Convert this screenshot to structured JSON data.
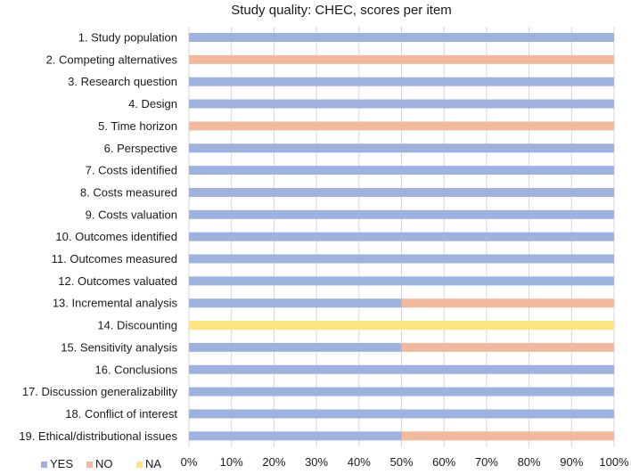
{
  "chart_data": {
    "type": "bar",
    "orientation": "horizontal",
    "stacked": true,
    "percent": true,
    "title": "Study quality: CHEC, scores per item",
    "xlabel": "",
    "ylabel": "",
    "xlim": [
      0,
      100
    ],
    "x_ticks": [
      "0%",
      "10%",
      "20%",
      "30%",
      "40%",
      "50%",
      "60%",
      "70%",
      "80%",
      "90%",
      "100%"
    ],
    "grid": "vertical",
    "legend_position": "bottom-left",
    "categories": [
      "1. Study population",
      "2. Competing alternatives",
      "3. Research question",
      "4. Design",
      "5. Time horizon",
      "6. Perspective",
      "7. Costs identified",
      "8. Costs measured",
      "9. Costs valuation",
      "10. Outcomes identified",
      "11. Outcomes measured",
      "12. Outcomes valuated",
      "13. Incremental analysis",
      "14. Discounting",
      "15. Sensitivity analysis",
      "16. Conclusions",
      "17. Discussion generalizability",
      "18. Conflict of interest",
      "19. Ethical/distributional issues"
    ],
    "series": [
      {
        "name": "YES",
        "color": "#9db2df",
        "values": [
          100,
          0,
          100,
          100,
          0,
          100,
          100,
          100,
          100,
          100,
          100,
          100,
          50,
          0,
          50,
          100,
          100,
          100,
          50
        ]
      },
      {
        "name": "NO",
        "color": "#f3b99d",
        "values": [
          0,
          100,
          0,
          0,
          100,
          0,
          0,
          0,
          0,
          0,
          0,
          0,
          50,
          0,
          50,
          0,
          0,
          0,
          50
        ]
      },
      {
        "name": "NA",
        "color": "#fde581",
        "values": [
          0,
          0,
          0,
          0,
          0,
          0,
          0,
          0,
          0,
          0,
          0,
          0,
          0,
          100,
          0,
          0,
          0,
          0,
          0
        ]
      }
    ]
  },
  "colors": {
    "grid": "#d6d6d6",
    "text": "#1a1a1a"
  }
}
